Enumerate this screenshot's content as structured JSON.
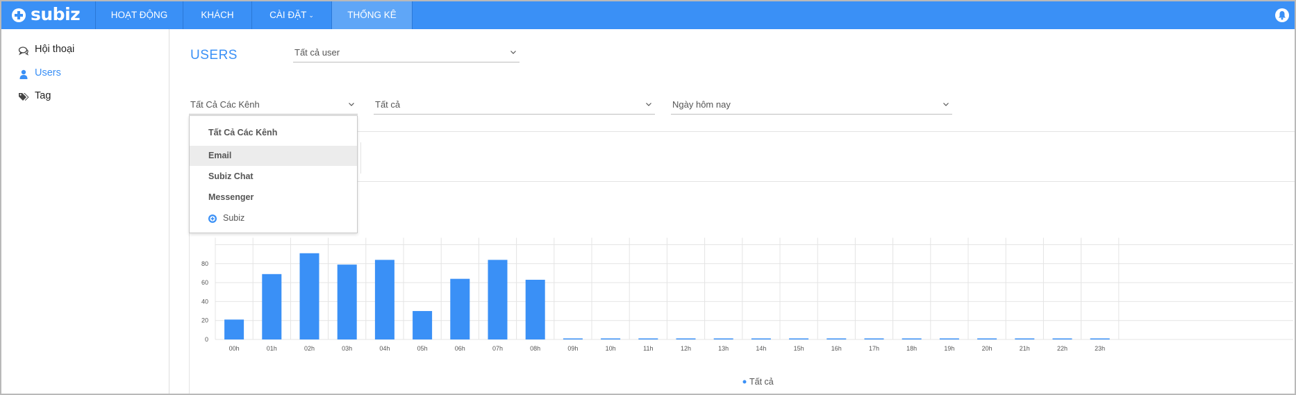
{
  "app": {
    "logo_text": "subiz",
    "brand_color": "#3a90f6"
  },
  "navbar": {
    "items": [
      {
        "label": "HOẠT ĐỘNG"
      },
      {
        "label": "KHÁCH"
      },
      {
        "label": "CÀI ĐẶT"
      },
      {
        "label": "THỐNG KÊ"
      }
    ],
    "active": "THỐNG KÊ",
    "notification_icon": "bell-icon"
  },
  "sidebar": {
    "items": [
      {
        "label": "Hội thoại",
        "icon": "chat-bubbles-icon"
      },
      {
        "label": "Users",
        "icon": "user-icon"
      },
      {
        "label": "Tag",
        "icon": "tags-icon"
      }
    ],
    "active": "Users"
  },
  "main": {
    "title": "USERS",
    "user_filter": {
      "value": "Tất cả user"
    },
    "channel_filter": {
      "value": "Tất Cả Các Kênh"
    },
    "status_filter": {
      "value": "Tất cả"
    },
    "date_filter": {
      "value": "Ngày hôm nay"
    }
  },
  "dropdown": {
    "items": [
      {
        "label": "Tất Cả Các Kênh"
      },
      {
        "label": "Email"
      },
      {
        "label": "Subiz Chat"
      },
      {
        "label": "Messenger"
      },
      {
        "label": "Subiz",
        "icon": "subiz-logo-icon"
      }
    ],
    "highlighted": "Email"
  },
  "chart_data": {
    "type": "bar",
    "categories": [
      "00h",
      "01h",
      "02h",
      "03h",
      "04h",
      "05h",
      "06h",
      "07h",
      "08h",
      "09h",
      "10h",
      "11h",
      "12h",
      "13h",
      "14h",
      "15h",
      "16h",
      "17h",
      "18h",
      "19h",
      "20h",
      "21h",
      "22h",
      "23h"
    ],
    "series": [
      {
        "name": "Tất cả",
        "values": [
          21,
          69,
          91,
          79,
          84,
          30,
          64,
          84,
          63,
          1,
          1,
          1,
          1,
          1,
          1,
          1,
          1,
          1,
          1,
          1,
          1,
          1,
          1,
          1
        ],
        "color": "#3a90f6"
      }
    ],
    "y_ticks": [
      "0",
      "20",
      "40",
      "60",
      "80"
    ],
    "ylim": [
      0,
      100
    ],
    "grid": true,
    "legend": "bottom-center"
  }
}
